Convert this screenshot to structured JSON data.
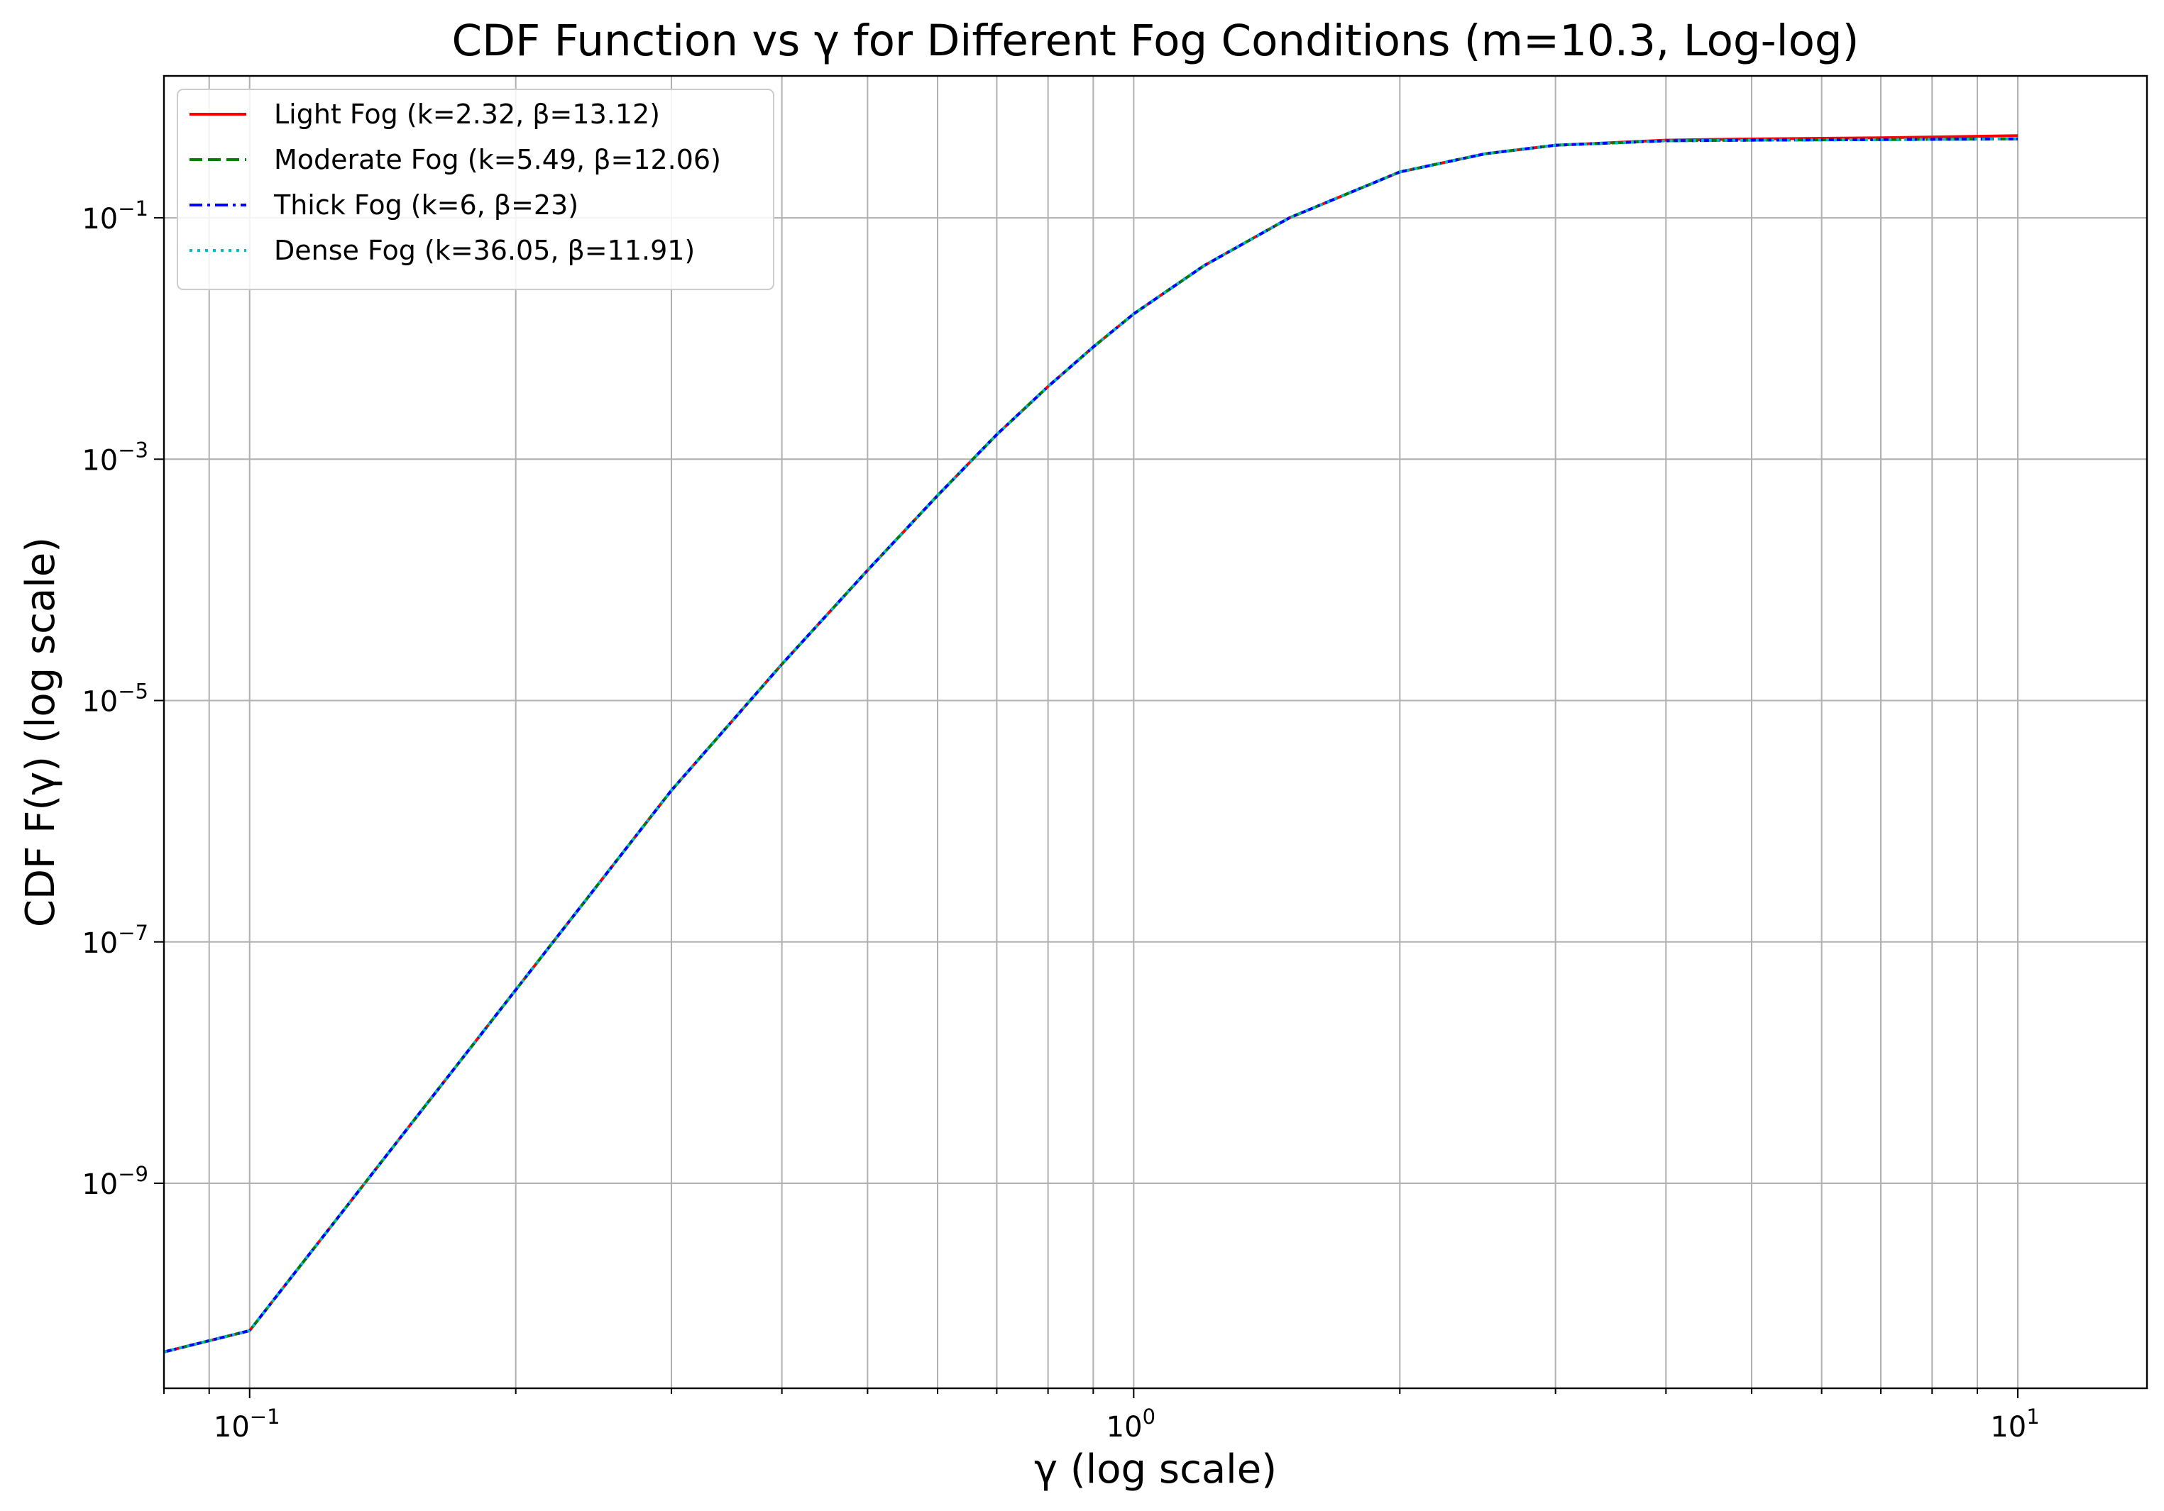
{
  "chart_data": {
    "type": "line",
    "title": "CDF Function vs γ for Different Fog Conditions (m=10.3, Log-log)",
    "xlabel": "γ (log scale)",
    "ylabel": "CDF F(γ) (log scale)",
    "xscale": "log",
    "yscale": "log",
    "xlim": [
      0.08,
      14
    ],
    "ylim": [
      2e-11,
      1.5
    ],
    "grid": true,
    "grid_which": "both",
    "legend_position": "top-left",
    "x_ticks": [
      {
        "value": 0.1,
        "base": "10",
        "exp": "−1"
      },
      {
        "value": 1,
        "base": "10",
        "exp": "0"
      },
      {
        "value": 10,
        "base": "10",
        "exp": "1"
      }
    ],
    "y_ticks": [
      {
        "value": 1e-09,
        "base": "10",
        "exp": "−9"
      },
      {
        "value": 1e-07,
        "base": "10",
        "exp": "−7"
      },
      {
        "value": 1e-05,
        "base": "10",
        "exp": "−5"
      },
      {
        "value": 0.001,
        "base": "10",
        "exp": "−3"
      },
      {
        "value": 0.1,
        "base": "10",
        "exp": "−1"
      }
    ],
    "x": [
      0.08,
      0.1,
      0.2,
      0.3,
      0.4,
      0.5,
      0.6,
      0.7,
      0.8,
      0.9,
      1.0,
      1.2,
      1.5,
      2.0,
      2.5,
      3.0,
      4.0,
      5.0,
      7.0,
      10.0
    ],
    "series": [
      {
        "name": "Light Fog (k=2.32, β=13.12)",
        "color": "#ff0000",
        "dash": "solid",
        "values": [
          4e-11,
          6e-11,
          4e-08,
          1.8e-06,
          2e-05,
          0.00012,
          0.0005,
          0.0016,
          0.004,
          0.0085,
          0.016,
          0.04,
          0.1,
          0.24,
          0.34,
          0.4,
          0.44,
          0.45,
          0.46,
          0.48
        ]
      },
      {
        "name": "Moderate Fog (k=5.49, β=12.06)",
        "color": "#008000",
        "dash": "dashed",
        "values": [
          4e-11,
          6e-11,
          4e-08,
          1.8e-06,
          2e-05,
          0.00012,
          0.0005,
          0.0016,
          0.004,
          0.0085,
          0.016,
          0.04,
          0.1,
          0.24,
          0.34,
          0.4,
          0.435,
          0.44,
          0.445,
          0.45
        ]
      },
      {
        "name": "Thick Fog (k=6, β=23)",
        "color": "#0000ff",
        "dash": "dashdot",
        "values": [
          4e-11,
          6e-11,
          4e-08,
          1.8e-06,
          2e-05,
          0.00012,
          0.0005,
          0.0016,
          0.004,
          0.0085,
          0.016,
          0.04,
          0.1,
          0.24,
          0.34,
          0.4,
          0.435,
          0.44,
          0.445,
          0.45
        ]
      },
      {
        "name": "Dense Fog (k=36.05, β=11.91)",
        "color": "#00bfbf",
        "dash": "dotted",
        "values": [
          4e-11,
          6e-11,
          4e-08,
          1.8e-06,
          2e-05,
          0.00012,
          0.0005,
          0.0016,
          0.004,
          0.0085,
          0.016,
          0.04,
          0.1,
          0.24,
          0.34,
          0.4,
          0.435,
          0.44,
          0.445,
          0.45
        ]
      }
    ]
  }
}
